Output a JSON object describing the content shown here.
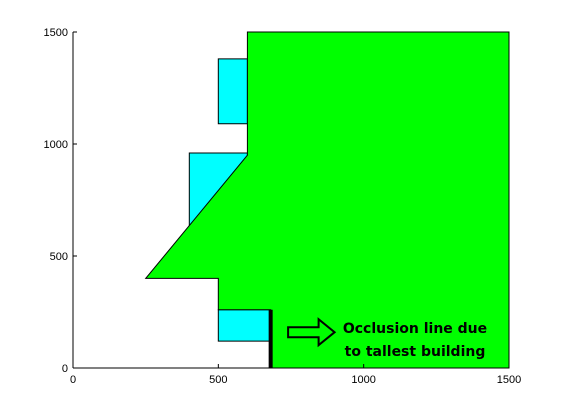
{
  "chart_data": {
    "type": "area",
    "title": "",
    "xlabel": "",
    "ylabel": "",
    "xlim": [
      0,
      1500
    ],
    "ylim": [
      0,
      1500
    ],
    "grid": false,
    "x_ticks": [
      0,
      500,
      1000,
      1500
    ],
    "y_ticks": [
      0,
      500,
      1000,
      1500
    ],
    "x_tick_labels": [
      "0",
      "500",
      "1000",
      "1500"
    ],
    "y_tick_labels": [
      "0",
      "500",
      "1000",
      "1500"
    ],
    "colors": {
      "occluded_region": "#00FF00",
      "buildings": "#00FFFF",
      "outline": "#000000",
      "occlusion_line": "#000000"
    },
    "buildings": [
      {
        "x": [
          500,
          680,
          680,
          500
        ],
        "y": [
          120,
          120,
          260,
          260
        ]
      },
      {
        "x": [
          400,
          600,
          600,
          400
        ],
        "y": [
          620,
          620,
          960,
          960
        ]
      },
      {
        "x": [
          500,
          600,
          600,
          500
        ],
        "y": [
          1090,
          1090,
          1380,
          1380
        ]
      }
    ],
    "occluded_region": {
      "x": [
        680,
        1500,
        1500,
        600,
        600,
        250,
        500,
        500,
        680
      ],
      "y": [
        0,
        0,
        1500,
        1500,
        950,
        400,
        400,
        260,
        260
      ]
    },
    "occlusion_line": {
      "x": [
        680,
        680
      ],
      "y": [
        0,
        260
      ]
    },
    "annotation": {
      "line1": "Occlusion line due",
      "line2": "to tallest building",
      "arrow_from": [
        740,
        160
      ],
      "arrow_to": [
        900,
        160
      ]
    }
  }
}
